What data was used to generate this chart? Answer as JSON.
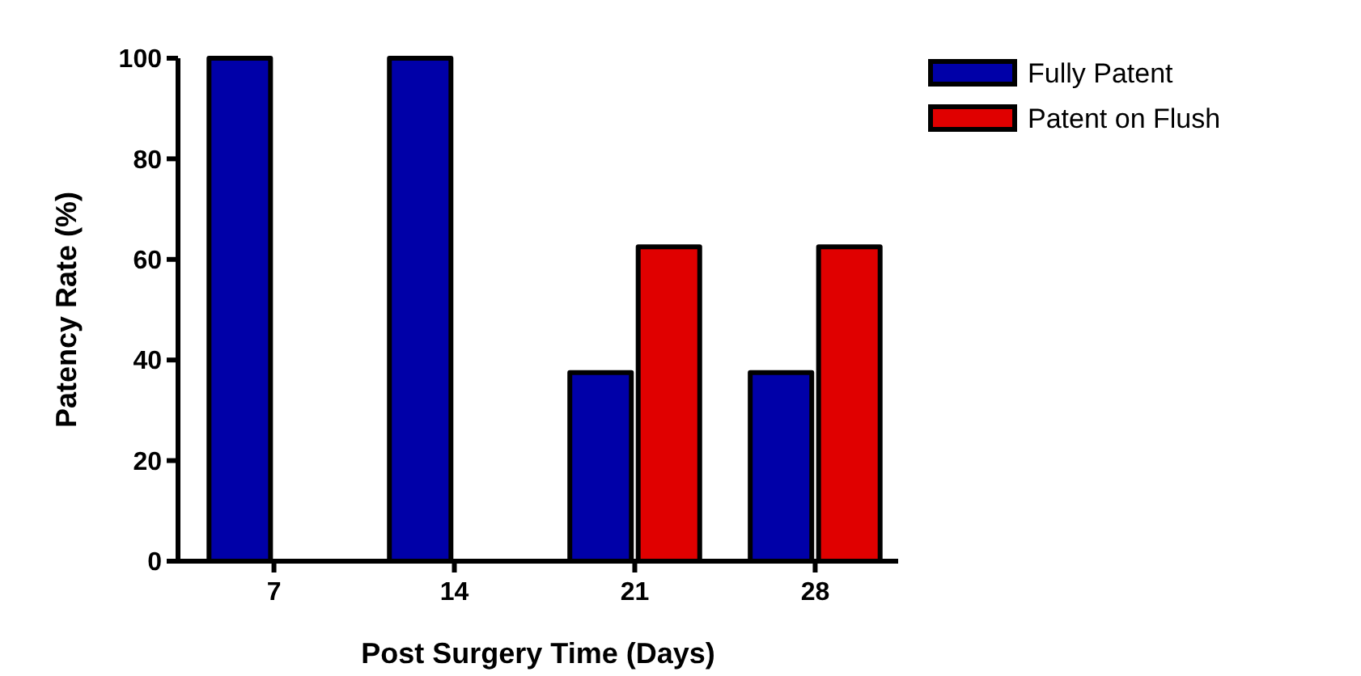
{
  "chart_data": {
    "type": "bar",
    "xlabel": "Post Surgery Time (Days)",
    "ylabel": "Patency Rate (%)",
    "categories": [
      "7",
      "14",
      "21",
      "28"
    ],
    "series": [
      {
        "name": "Fully Patent",
        "color": "#0000a8",
        "values": [
          100,
          100,
          37.5,
          37.5
        ]
      },
      {
        "name": "Patent on Flush",
        "color": "#e00000",
        "values": [
          0,
          0,
          62.5,
          62.5
        ]
      }
    ],
    "ylim": [
      0,
      100
    ],
    "yticks": [
      0,
      20,
      40,
      60,
      80,
      100
    ],
    "grid": false,
    "legend": "top right"
  }
}
